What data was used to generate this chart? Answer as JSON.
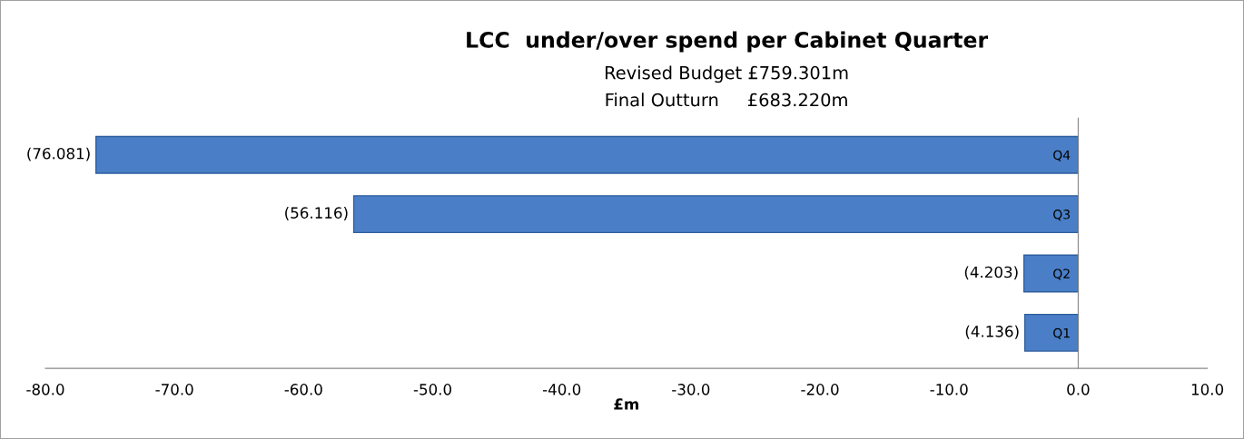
{
  "chart_data": {
    "type": "bar",
    "orientation": "horizontal",
    "title": "LCC  under/over spend per Cabinet Quarter",
    "subtitle": "Revised Budget £759.301m\nFinal Outturn     £683.220m",
    "xlabel": "£m",
    "categories": [
      "Q4",
      "Q3",
      "Q2",
      "Q1"
    ],
    "values": [
      -76.081,
      -56.116,
      -4.203,
      -4.136
    ],
    "value_labels": [
      "(76.081)",
      "(56.116)",
      "(4.203)",
      "(4.136)"
    ],
    "color": "#4a7ec6",
    "xlim": [
      -80,
      10
    ],
    "xticks": [
      {
        "value": -80,
        "label": "-80.0"
      },
      {
        "value": -70,
        "label": "-70.0"
      },
      {
        "value": -60,
        "label": "-60.0"
      },
      {
        "value": -50,
        "label": "-50.0"
      },
      {
        "value": -40,
        "label": "-40.0"
      },
      {
        "value": -30,
        "label": "-30.0"
      },
      {
        "value": -20,
        "label": "-20.0"
      },
      {
        "value": -10,
        "label": "-10.0"
      },
      {
        "value": 0,
        "label": "0.0"
      },
      {
        "value": 10,
        "label": "10.0"
      }
    ],
    "grid": false,
    "legend": false
  }
}
